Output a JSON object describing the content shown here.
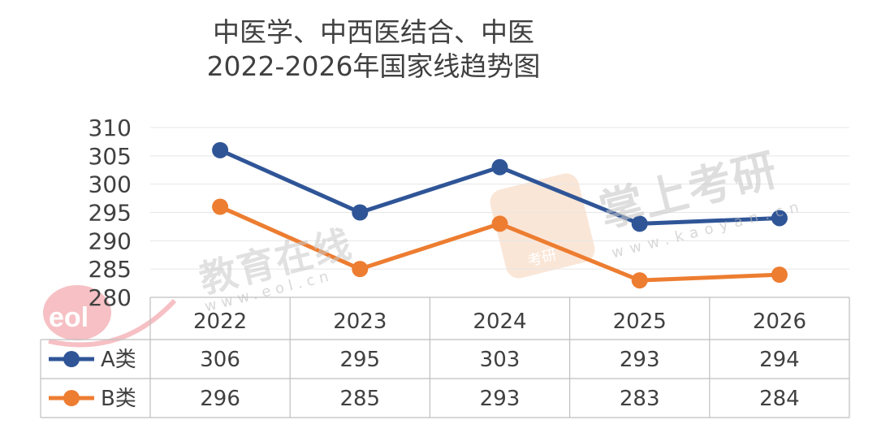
{
  "title": {
    "line1": "中医学、中西医结合、中医",
    "line2": "2022-2026年国家线趋势图"
  },
  "watermarks": {
    "left_text": "教育在线",
    "left_url": "www.eol.cn",
    "left_logo": "eol",
    "right_text": "掌上考研",
    "right_url": "www.kaoyan.cn",
    "right_badge": "考研"
  },
  "colors": {
    "series_a": "#2F5597",
    "series_b": "#ED7D31",
    "grid": "#E6E6E6",
    "table_border": "#BFBFBF"
  },
  "chart_data": {
    "type": "line",
    "title": "中医学、中西医结合、中医 2022-2026年国家线趋势图",
    "categories": [
      "2022",
      "2023",
      "2024",
      "2025",
      "2026"
    ],
    "series": [
      {
        "name": "A类",
        "values": [
          306,
          295,
          303,
          293,
          294
        ]
      },
      {
        "name": "B类",
        "values": [
          296,
          285,
          293,
          283,
          284
        ]
      }
    ],
    "yticks": [
      "310",
      "305",
      "300",
      "295",
      "290",
      "285",
      "280"
    ],
    "ylim": [
      280,
      310
    ],
    "grid": true,
    "legend": "data table"
  }
}
